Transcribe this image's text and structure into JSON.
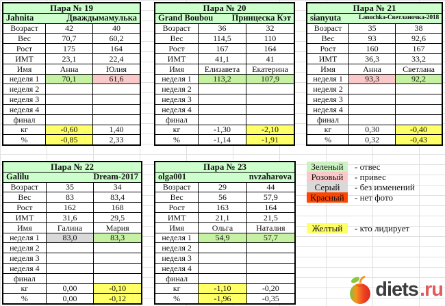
{
  "colors": {
    "header_green": "#ccffcc",
    "loss_green": "#c6f0a2",
    "gain_pink": "#f9c9c9",
    "no_change_gray": "#d9d9d9",
    "no_photo_red": "#ff4500",
    "leader_yellow": "#ffff66",
    "legend_green": "#ccf2c4",
    "grid_line": "#e0e0e0",
    "logo_brand": "#3c3c3c",
    "logo_tld": "#e05c5c"
  },
  "pairs": [
    {
      "title": "Пара № 19",
      "left_nick": "Jahnita",
      "right_nick": "Дваждымамулька",
      "right_nick_small": false,
      "rows": [
        {
          "label": "Возраст",
          "v1": "42",
          "v2": "40",
          "c1": "",
          "c2": ""
        },
        {
          "label": "Вес",
          "v1": "70,7",
          "v2": "60,2",
          "c1": "",
          "c2": ""
        },
        {
          "label": "Рост",
          "v1": "175",
          "v2": "164",
          "c1": "",
          "c2": ""
        },
        {
          "label": "ИМТ",
          "v1": "23,1",
          "v2": "22,4",
          "c1": "",
          "c2": ""
        },
        {
          "label": "Имя",
          "v1": "Анна",
          "v2": "Юлия",
          "c1": "",
          "c2": ""
        },
        {
          "label": "неделя 1",
          "v1": "70,1",
          "v2": "61,6",
          "c1": "loss_green",
          "c2": "gain_pink"
        },
        {
          "label": "неделя 2",
          "v1": "",
          "v2": "",
          "c1": "",
          "c2": ""
        },
        {
          "label": "неделя 3",
          "v1": "",
          "v2": "",
          "c1": "",
          "c2": ""
        },
        {
          "label": "неделя 4",
          "v1": "",
          "v2": "",
          "c1": "",
          "c2": ""
        },
        {
          "label": "финал",
          "v1": "",
          "v2": "",
          "c1": "",
          "c2": ""
        },
        {
          "label": "кг",
          "v1": "-0,60",
          "v2": "1,40",
          "c1": "leader_yellow",
          "c2": ""
        },
        {
          "label": "%",
          "v1": "-0,85",
          "v2": "2,33",
          "c1": "leader_yellow",
          "c2": ""
        }
      ]
    },
    {
      "title": "Пара № 20",
      "left_nick": "Grand Boubou",
      "right_nick": "Принцеска Кэт",
      "right_nick_small": false,
      "rows": [
        {
          "label": "Возраст",
          "v1": "36",
          "v2": "32",
          "c1": "",
          "c2": ""
        },
        {
          "label": "Вес",
          "v1": "114,5",
          "v2": "110",
          "c1": "",
          "c2": ""
        },
        {
          "label": "Рост",
          "v1": "167",
          "v2": "164",
          "c1": "",
          "c2": ""
        },
        {
          "label": "ИМТ",
          "v1": "41,1",
          "v2": "41",
          "c1": "",
          "c2": ""
        },
        {
          "label": "Имя",
          "v1": "Елизавета",
          "v2": "Екатерина",
          "c1": "",
          "c2": ""
        },
        {
          "label": "неделя 1",
          "v1": "113,2",
          "v2": "107,9",
          "c1": "loss_green",
          "c2": "loss_green"
        },
        {
          "label": "неделя 2",
          "v1": "",
          "v2": "",
          "c1": "",
          "c2": ""
        },
        {
          "label": "неделя 3",
          "v1": "",
          "v2": "",
          "c1": "",
          "c2": ""
        },
        {
          "label": "неделя 4",
          "v1": "",
          "v2": "",
          "c1": "",
          "c2": ""
        },
        {
          "label": "финал",
          "v1": "",
          "v2": "",
          "c1": "",
          "c2": ""
        },
        {
          "label": "кг",
          "v1": "-1,30",
          "v2": "-2,10",
          "c1": "",
          "c2": "leader_yellow"
        },
        {
          "label": "%",
          "v1": "-1,14",
          "v2": "-1,91",
          "c1": "",
          "c2": "leader_yellow"
        }
      ]
    },
    {
      "title": "Пара № 21",
      "left_nick": "sianyuta",
      "right_nick": "Lanochka-Светланочка-2018",
      "right_nick_small": true,
      "rows": [
        {
          "label": "Возраст",
          "v1": "35",
          "v2": "38",
          "c1": "",
          "c2": ""
        },
        {
          "label": "Вес",
          "v1": "93",
          "v2": "92,6",
          "c1": "",
          "c2": ""
        },
        {
          "label": "Рост",
          "v1": "160",
          "v2": "167",
          "c1": "",
          "c2": ""
        },
        {
          "label": "ИМТ",
          "v1": "36,3",
          "v2": "33,2",
          "c1": "",
          "c2": ""
        },
        {
          "label": "Имя",
          "v1": "Анна",
          "v2": "Светлана",
          "c1": "",
          "c2": ""
        },
        {
          "label": "неделя 1",
          "v1": "93,3",
          "v2": "92,2",
          "c1": "gain_pink",
          "c2": "loss_green"
        },
        {
          "label": "неделя 2",
          "v1": "",
          "v2": "",
          "c1": "",
          "c2": ""
        },
        {
          "label": "неделя 3",
          "v1": "",
          "v2": "",
          "c1": "",
          "c2": ""
        },
        {
          "label": "неделя 4",
          "v1": "",
          "v2": "",
          "c1": "",
          "c2": ""
        },
        {
          "label": "финал",
          "v1": "",
          "v2": "",
          "c1": "",
          "c2": ""
        },
        {
          "label": "кг",
          "v1": "0,30",
          "v2": "-0,40",
          "c1": "",
          "c2": "leader_yellow"
        },
        {
          "label": "%",
          "v1": "0,32",
          "v2": "-0,43",
          "c1": "",
          "c2": "leader_yellow"
        }
      ]
    },
    {
      "title": "Пара № 22",
      "left_nick": "Galilu",
      "right_nick": "Dream-2017",
      "right_nick_small": false,
      "rows": [
        {
          "label": "Возраст",
          "v1": "35",
          "v2": "34",
          "c1": "",
          "c2": ""
        },
        {
          "label": "Вес",
          "v1": "83",
          "v2": "83,4",
          "c1": "",
          "c2": ""
        },
        {
          "label": "Рост",
          "v1": "162",
          "v2": "168",
          "c1": "",
          "c2": ""
        },
        {
          "label": "ИМТ",
          "v1": "31,6",
          "v2": "29,5",
          "c1": "",
          "c2": ""
        },
        {
          "label": "Имя",
          "v1": "Галина",
          "v2": "Мария",
          "c1": "",
          "c2": ""
        },
        {
          "label": "неделя 1",
          "v1": "83,0",
          "v2": "83,3",
          "c1": "no_change_gray",
          "c2": "loss_green"
        },
        {
          "label": "неделя 2",
          "v1": "",
          "v2": "",
          "c1": "",
          "c2": ""
        },
        {
          "label": "неделя 3",
          "v1": "",
          "v2": "",
          "c1": "",
          "c2": ""
        },
        {
          "label": "неделя 4",
          "v1": "",
          "v2": "",
          "c1": "",
          "c2": ""
        },
        {
          "label": "финал",
          "v1": "",
          "v2": "",
          "c1": "",
          "c2": ""
        },
        {
          "label": "кг",
          "v1": "0,00",
          "v2": "-0,10",
          "c1": "",
          "c2": "leader_yellow"
        },
        {
          "label": "%",
          "v1": "0,00",
          "v2": "-0,12",
          "c1": "",
          "c2": "leader_yellow"
        }
      ]
    },
    {
      "title": "Пара № 23",
      "left_nick": "olga001",
      "right_nick": "nvzaharova",
      "right_nick_small": false,
      "rows": [
        {
          "label": "Возраст",
          "v1": "29",
          "v2": "44",
          "c1": "",
          "c2": ""
        },
        {
          "label": "Вес",
          "v1": "56",
          "v2": "57,9",
          "c1": "",
          "c2": ""
        },
        {
          "label": "Рост",
          "v1": "163",
          "v2": "164",
          "c1": "",
          "c2": ""
        },
        {
          "label": "ИМТ",
          "v1": "21,1",
          "v2": "21,5",
          "c1": "",
          "c2": ""
        },
        {
          "label": "Имя",
          "v1": "Ольга",
          "v2": "Наталия",
          "c1": "",
          "c2": ""
        },
        {
          "label": "неделя 1",
          "v1": "54,9",
          "v2": "57,7",
          "c1": "loss_green",
          "c2": "loss_green"
        },
        {
          "label": "неделя 2",
          "v1": "",
          "v2": "",
          "c1": "",
          "c2": ""
        },
        {
          "label": "неделя 3",
          "v1": "",
          "v2": "",
          "c1": "",
          "c2": ""
        },
        {
          "label": "неделя 4",
          "v1": "",
          "v2": "",
          "c1": "",
          "c2": ""
        },
        {
          "label": "финал",
          "v1": "",
          "v2": "",
          "c1": "",
          "c2": ""
        },
        {
          "label": "кг",
          "v1": "-1,10",
          "v2": "-0,20",
          "c1": "leader_yellow",
          "c2": ""
        },
        {
          "label": "%",
          "v1": "-1,96",
          "v2": "-0,35",
          "c1": "leader_yellow",
          "c2": ""
        }
      ]
    }
  ],
  "legend": {
    "items": [
      {
        "label": "Зеленый",
        "desc": "- отвес",
        "color_key": "legend_green"
      },
      {
        "label": "Розовый",
        "desc": "- привес",
        "color_key": "gain_pink"
      },
      {
        "label": "Серый",
        "desc": "- без изменений",
        "color_key": "no_change_gray"
      },
      {
        "label": "Красный",
        "desc": "- нет фото",
        "color_key": "no_photo_red"
      },
      {
        "label": "Желтый",
        "desc": "- кто лидирует",
        "color_key": "leader_yellow"
      }
    ]
  },
  "logo": {
    "brand": "diets",
    "tld": ".ru"
  }
}
